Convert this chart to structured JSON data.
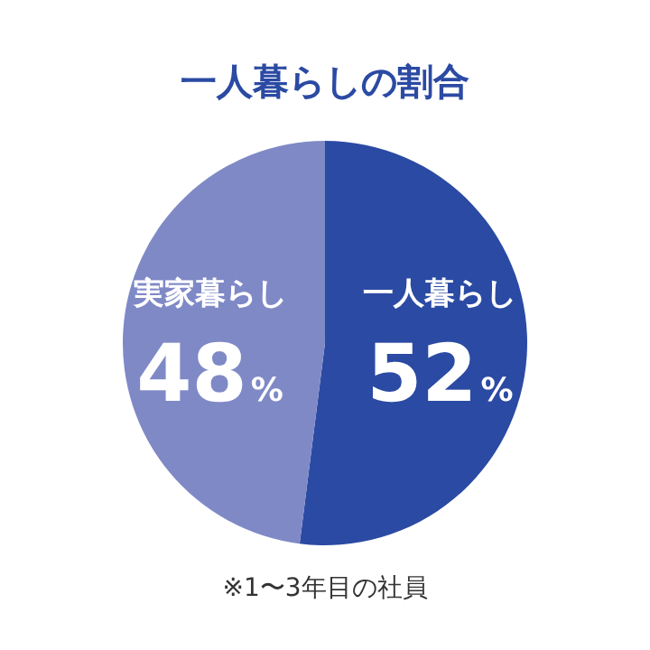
{
  "chart_data": {
    "type": "pie",
    "title": "一人暮らしの割合",
    "categories": [
      "一人暮らし",
      "実家暮らし"
    ],
    "values": [
      52,
      48
    ],
    "colors": [
      "#2b4aa3",
      "#7f89c6"
    ],
    "value_labels": [
      "52%",
      "48%"
    ],
    "annotations": [
      "※1〜3年目の社員"
    ]
  }
}
